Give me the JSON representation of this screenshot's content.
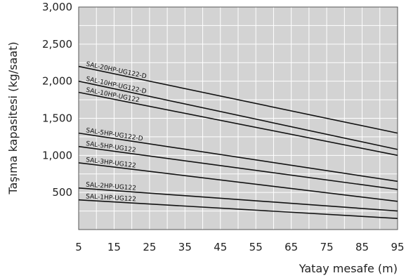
{
  "chart_data": {
    "type": "line",
    "title": "",
    "xlabel": "Yatay mesafe (m)",
    "ylabel": "Taşıma kapasitesi (kg/saat)",
    "xlim": [
      5,
      95
    ],
    "ylim": [
      0,
      3000
    ],
    "x_ticks": [
      "5",
      "15",
      "25",
      "35",
      "45",
      "55",
      "65",
      "75",
      "85",
      "95"
    ],
    "y_ticks": [
      "500",
      "1,000",
      "1,500",
      "2,000",
      "2,500",
      "3,000"
    ],
    "grid": true,
    "plot_background": "#d3d3d3",
    "line_color": "#111111",
    "series": [
      {
        "name": "SAL-20HP-UG122-D",
        "x": [
          5,
          95
        ],
        "values": [
          2200,
          1300
        ]
      },
      {
        "name": "SAL-10HP-UG122-D",
        "x": [
          5,
          95
        ],
        "values": [
          2000,
          1080
        ]
      },
      {
        "name": "SAL-10HP-UG122",
        "x": [
          5,
          95
        ],
        "values": [
          1850,
          1000
        ]
      },
      {
        "name": "SAL-5HP-UG122-D",
        "x": [
          5,
          95
        ],
        "values": [
          1300,
          650
        ]
      },
      {
        "name": "SAL-5HP-UG122",
        "x": [
          5,
          95
        ],
        "values": [
          1120,
          540
        ]
      },
      {
        "name": "SAL-3HP-UG122",
        "x": [
          5,
          95
        ],
        "values": [
          900,
          380
        ]
      },
      {
        "name": "SAL-2HP-UG122",
        "x": [
          5,
          95
        ],
        "values": [
          560,
          250
        ]
      },
      {
        "name": "SAL-1HP-UG122",
        "x": [
          5,
          95
        ],
        "values": [
          400,
          150
        ]
      }
    ]
  }
}
